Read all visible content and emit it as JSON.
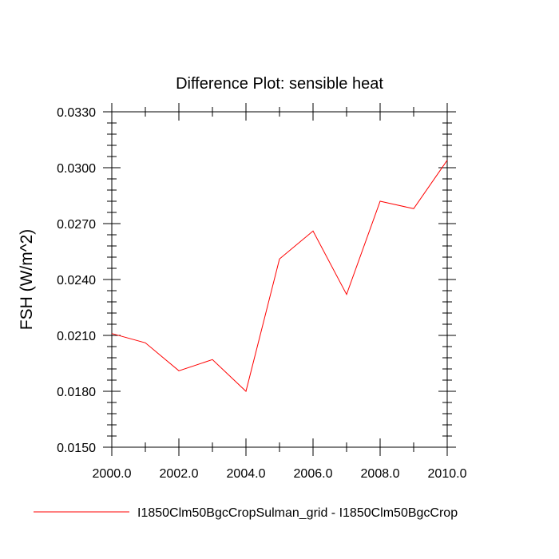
{
  "chart_data": {
    "type": "line",
    "title": "Difference Plot: sensible heat",
    "xlabel": "",
    "ylabel": "FSH  (W/m^2)",
    "xlim": [
      2000,
      2010
    ],
    "ylim": [
      0.015,
      0.033
    ],
    "x_ticks": [
      "2000.0",
      "2002.0",
      "2004.0",
      "2006.0",
      "2008.0",
      "2010.0"
    ],
    "x_tick_values": [
      2000,
      2002,
      2004,
      2006,
      2008,
      2010
    ],
    "y_ticks": [
      "0.0150",
      "0.0180",
      "0.0210",
      "0.0240",
      "0.0270",
      "0.0300",
      "0.0330"
    ],
    "y_tick_values": [
      0.015,
      0.018,
      0.021,
      0.024,
      0.027,
      0.03,
      0.033
    ],
    "grid": false,
    "legend_position": "bottom",
    "series": [
      {
        "name": "I1850Clm50BgcCropSulman_grid - I1850Clm50BgcCrop",
        "color": "#ff0000",
        "x": [
          2000,
          2001,
          2002,
          2003,
          2004,
          2005,
          2006,
          2007,
          2008,
          2009,
          2010
        ],
        "y": [
          0.0211,
          0.0206,
          0.0191,
          0.0197,
          0.018,
          0.0251,
          0.0266,
          0.0232,
          0.0282,
          0.0278,
          0.0304
        ]
      }
    ]
  }
}
